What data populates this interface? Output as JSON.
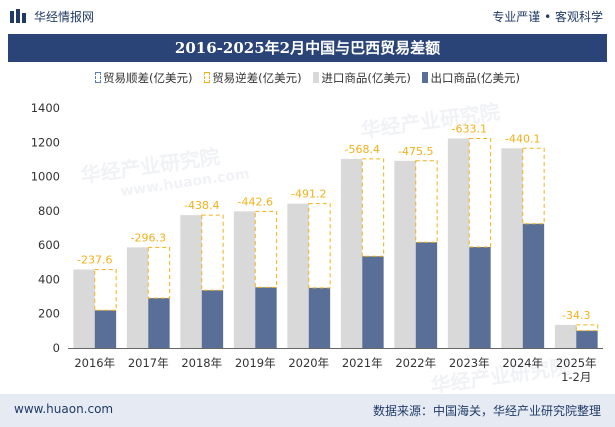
{
  "header": {
    "site_name": "华经情报网",
    "tagline": "专业严谨 • 客观科学"
  },
  "chart_data": {
    "type": "bar",
    "title": "2016-2025年2月中国与巴西贸易差额",
    "categories": [
      "2016年",
      "2017年",
      "2018年",
      "2019年",
      "2020年",
      "2021年",
      "2022年",
      "2023年",
      "2024年",
      "2025年 1-2月"
    ],
    "series": [
      {
        "name": "贸易顺差(亿美元)",
        "values": [
          null,
          null,
          null,
          null,
          null,
          null,
          null,
          null,
          null,
          null
        ]
      },
      {
        "name": "贸易逆差(亿美元)",
        "values": [
          -237.6,
          -296.3,
          -438.4,
          -442.6,
          -491.2,
          -568.4,
          -475.5,
          -633.1,
          -440.1,
          -34.3
        ]
      },
      {
        "name": "进口商品(亿美元)",
        "values": [
          458,
          587,
          775,
          797,
          842,
          1103,
          1092,
          1222,
          1165,
          135
        ]
      },
      {
        "name": "出口商品(亿美元)",
        "values": [
          220,
          291,
          337,
          354,
          351,
          535,
          617,
          589,
          725,
          101
        ]
      }
    ],
    "ylim": [
      0,
      1400
    ],
    "yticks": [
      0,
      200,
      400,
      600,
      800,
      1000,
      1200,
      1400
    ],
    "grid": false,
    "legend": "top",
    "colors": {
      "import": "#d9d9d9",
      "export": "#5a6f97",
      "deficit": "#f2b11a",
      "surplus": "#5b7fb0"
    }
  },
  "watermarks": [
    "华经产业研究院",
    "www.huaon.com"
  ],
  "footer": {
    "website": "www.huaon.com",
    "source": "数据来源：中国海关，华经产业研究院整理"
  }
}
